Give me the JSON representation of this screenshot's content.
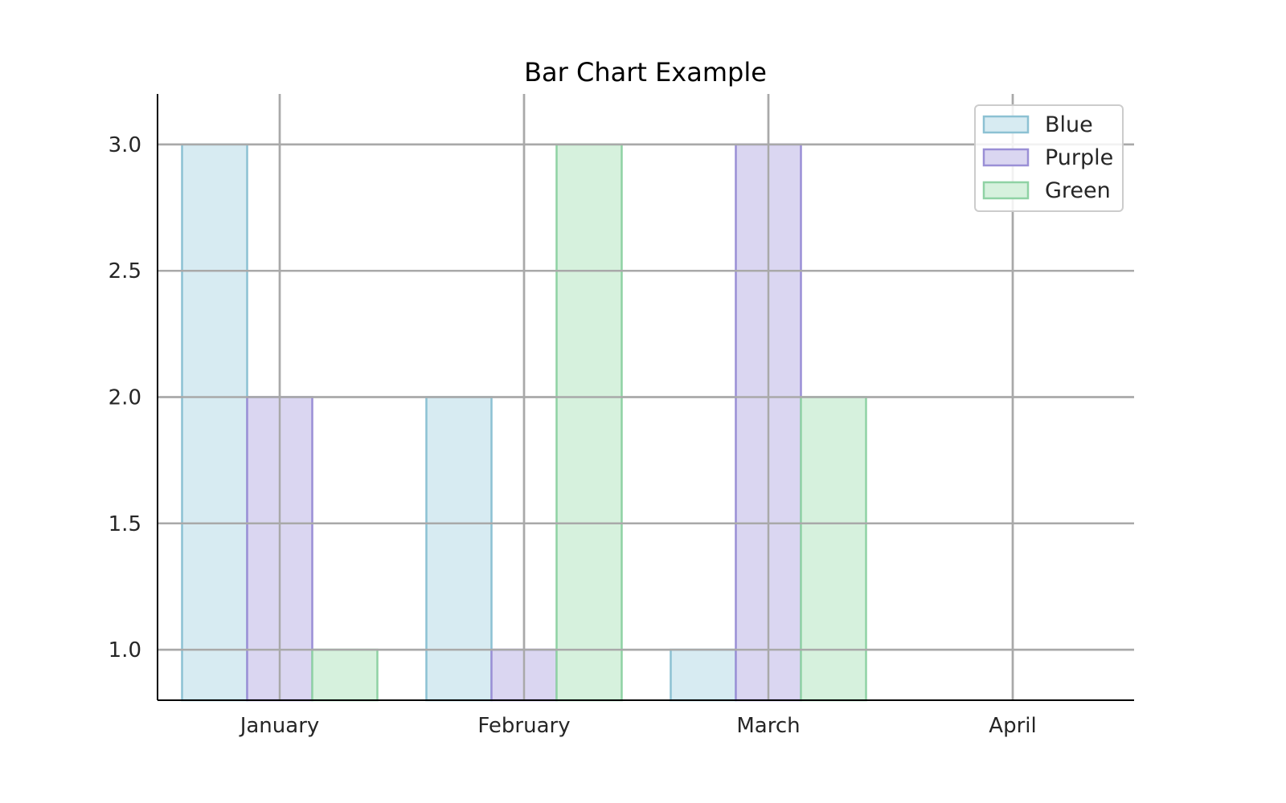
{
  "chart_data": {
    "type": "bar",
    "title": "Bar Chart Example",
    "xlabel": "",
    "ylabel": "",
    "categories": [
      "January",
      "February",
      "March",
      "April"
    ],
    "series": [
      {
        "name": "Blue",
        "values": [
          3,
          2,
          1,
          null
        ],
        "fill": "#d7ebf2",
        "stroke": "#8cc1d3"
      },
      {
        "name": "Purple",
        "values": [
          2,
          1,
          3,
          null
        ],
        "fill": "#dad6f1",
        "stroke": "#9a8fd6"
      },
      {
        "name": "Green",
        "values": [
          1,
          3,
          2,
          null
        ],
        "fill": "#d6f1dd",
        "stroke": "#8fd2a4"
      }
    ],
    "ylim": [
      0.8,
      3.2
    ],
    "yticks": [
      1.0,
      1.5,
      2.0,
      2.5,
      3.0
    ],
    "ytick_labels": [
      "1.0",
      "1.5",
      "2.0",
      "2.5",
      "3.0"
    ],
    "grid": true,
    "legend_position": "top-right",
    "colors": {
      "grid": "#a9a9a9",
      "axis": "#000000",
      "legend_border": "#cccccc"
    }
  }
}
